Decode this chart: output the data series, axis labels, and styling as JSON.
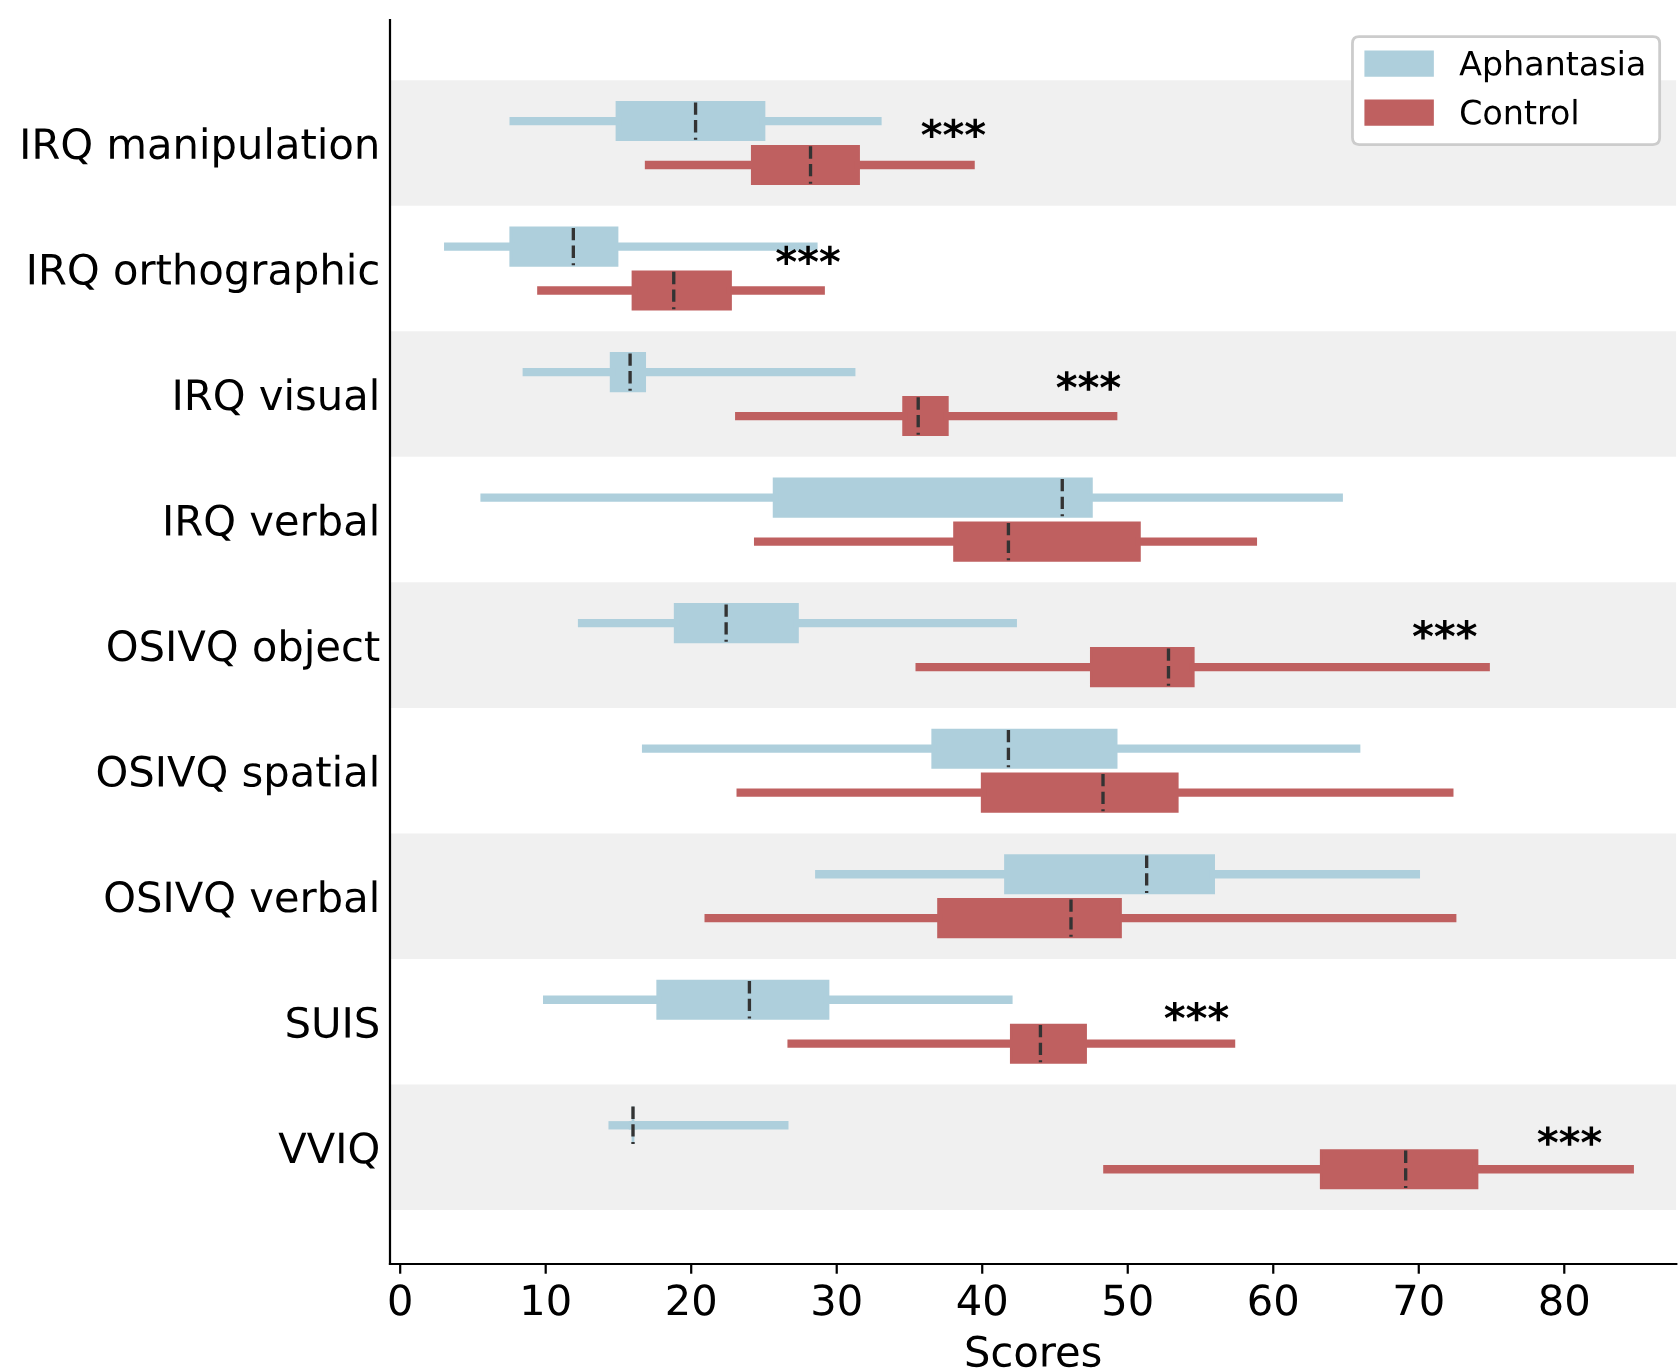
{
  "chart_data": {
    "type": "box",
    "orientation": "horizontal",
    "xlabel": "Scores",
    "categories": [
      "IRQ manipulation",
      "IRQ orthographic",
      "IRQ visual",
      "IRQ verbal",
      "OSIVQ object",
      "OSIVQ spatial",
      "OSIVQ verbal",
      "SUIS",
      "VVIQ"
    ],
    "series": [
      {
        "name": "Aphantasia",
        "color": "#aecfdc",
        "boxes": [
          {
            "low": 7.8,
            "q1": 14.9,
            "median": 20.3,
            "q3": 25,
            "high": 32.8
          },
          {
            "low": 3.3,
            "q1": 7.6,
            "median": 11.9,
            "q3": 14.9,
            "high": 28.4
          },
          {
            "low": 8.7,
            "q1": 14.5,
            "median": 15.8,
            "q3": 16.8,
            "high": 31
          },
          {
            "low": 5.8,
            "q1": 25.7,
            "median": 45.5,
            "q3": 47.5,
            "high": 64.5
          },
          {
            "low": 12.5,
            "q1": 18.9,
            "median": 22.4,
            "q3": 27.3,
            "high": 42.1
          },
          {
            "low": 16.9,
            "q1": 36.6,
            "median": 41.8,
            "q3": 49.2,
            "high": 65.7
          },
          {
            "low": 28.8,
            "q1": 41.6,
            "median": 51.3,
            "q3": 55.9,
            "high": 69.8
          },
          {
            "low": 10.1,
            "q1": 17.7,
            "median": 24,
            "q3": 29.4,
            "high": 41.8
          },
          {
            "low": 14.6,
            "q1": 16,
            "median": 16,
            "q3": 16,
            "high": 26.4
          }
        ]
      },
      {
        "name": "Control",
        "color": "#bf6060",
        "boxes": [
          {
            "low": 17.1,
            "q1": 24.2,
            "median": 28.2,
            "q3": 31.5,
            "high": 39.2
          },
          {
            "low": 9.7,
            "q1": 16,
            "median": 18.8,
            "q3": 22.7,
            "high": 28.9
          },
          {
            "low": 23.3,
            "q1": 34.6,
            "median": 35.6,
            "q3": 37.6,
            "high": 49
          },
          {
            "low": 24.6,
            "q1": 38.1,
            "median": 41.8,
            "q3": 50.8,
            "high": 58.6
          },
          {
            "low": 35.7,
            "q1": 47.5,
            "median": 52.8,
            "q3": 54.5,
            "high": 74.6
          },
          {
            "low": 23.4,
            "q1": 40,
            "median": 48.3,
            "q3": 53.4,
            "high": 72.1
          },
          {
            "low": 21.2,
            "q1": 37,
            "median": 46.1,
            "q3": 49.5,
            "high": 72.3
          },
          {
            "low": 26.9,
            "q1": 42,
            "median": 44,
            "q3": 47.1,
            "high": 57.1
          },
          {
            "low": 48.6,
            "q1": 63.3,
            "median": 69.1,
            "q3": 74,
            "high": 84.5
          }
        ]
      }
    ],
    "xlim": [
      -0.7,
      87.7
    ],
    "xticks": [
      0,
      10,
      20,
      30,
      40,
      50,
      60,
      70,
      80
    ],
    "legend": "top right",
    "grid": false,
    "annotations": [
      "***",
      "***",
      "***",
      "***",
      "***",
      "***"
    ]
  }
}
